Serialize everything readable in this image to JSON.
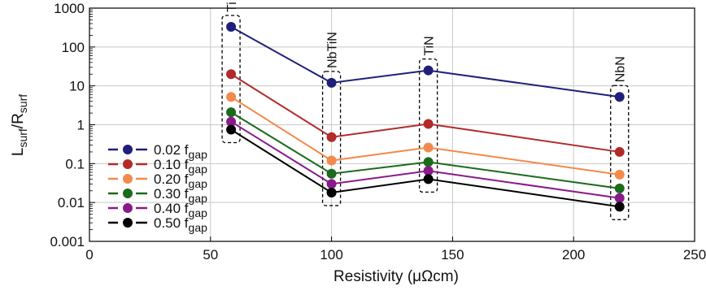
{
  "chart_data": {
    "type": "line",
    "xlabel": "Resistivity (μΩcm)",
    "ylabel": {
      "main": "L",
      "sub1": "surf",
      "sep": "/R",
      "sub2": "surf"
    },
    "xlim": [
      0,
      250
    ],
    "ylim": [
      0.001,
      1000
    ],
    "yscale": "log",
    "x_ticks": [
      "0",
      "50",
      "100",
      "150",
      "200",
      "250"
    ],
    "y_ticks": [
      "0.001",
      "0.01",
      "0.1",
      "1",
      "10",
      "100",
      "1000"
    ],
    "grid": true,
    "legend_position": "bottom-left",
    "x": [
      58.5,
      100,
      140,
      219
    ],
    "materials": [
      "Ti",
      "NbTiN",
      "TiN",
      "NbN"
    ],
    "series": [
      {
        "name": "0.02 f",
        "name_sub": "gap",
        "color": "#1f1f7a",
        "values": [
          330,
          12,
          25,
          5.2
        ]
      },
      {
        "name": "0.10 f",
        "name_sub": "gap",
        "color": "#b22a2a",
        "values": [
          20,
          0.48,
          1.05,
          0.2
        ]
      },
      {
        "name": "0.20 f",
        "name_sub": "gap",
        "color": "#f28a4c",
        "values": [
          5.2,
          0.12,
          0.26,
          0.052
        ]
      },
      {
        "name": "0.30 f",
        "name_sub": "gap",
        "color": "#1a6b1a",
        "values": [
          2.1,
          0.055,
          0.11,
          0.023
        ]
      },
      {
        "name": "0.40 f",
        "name_sub": "gap",
        "color": "#8a1a8a",
        "values": [
          1.2,
          0.03,
          0.065,
          0.013
        ]
      },
      {
        "name": "0.50 f",
        "name_sub": "gap",
        "color": "#000000",
        "values": [
          0.75,
          0.018,
          0.04,
          0.0078
        ]
      }
    ]
  }
}
